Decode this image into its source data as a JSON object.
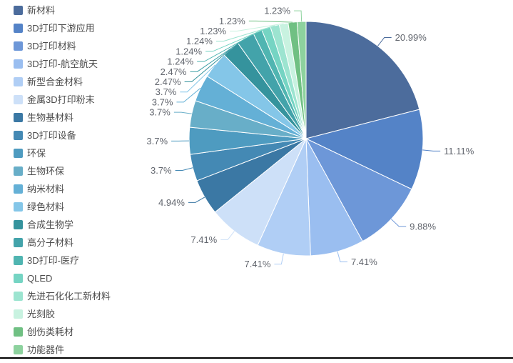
{
  "chart_data": {
    "type": "pie",
    "title": "",
    "legend_position": "left",
    "label_style": "percent-callout-with-leader-lines",
    "start_angle": "12-oclock",
    "direction": "clockwise",
    "items": [
      {
        "label": "新材料",
        "value": 20.99,
        "pct": "20.99%",
        "color": "#4C6C9C"
      },
      {
        "label": "3D打印下游应用",
        "value": 11.11,
        "pct": "11.11%",
        "color": "#5483C7"
      },
      {
        "label": "3D打印材料",
        "value": 9.88,
        "pct": "9.88%",
        "color": "#6D97D8"
      },
      {
        "label": "3D打印-航空航天",
        "value": 7.41,
        "pct": "7.41%",
        "color": "#9ABEF0"
      },
      {
        "label": "新型合金材料",
        "value": 7.41,
        "pct": "7.41%",
        "color": "#B0CEF5"
      },
      {
        "label": "金属3D打印粉末",
        "value": 7.41,
        "pct": "7.41%",
        "color": "#CDE0F8"
      },
      {
        "label": "生物基材料",
        "value": 4.94,
        "pct": "4.94%",
        "color": "#3B78A4"
      },
      {
        "label": "3D打印设备",
        "value": 3.7,
        "pct": "3.7%",
        "color": "#4489B4"
      },
      {
        "label": "环保",
        "value": 3.7,
        "pct": "3.7%",
        "color": "#4E9BC0"
      },
      {
        "label": "生物环保",
        "value": 3.7,
        "pct": "3.7%",
        "color": "#68AEC8"
      },
      {
        "label": "纳米材料",
        "value": 3.7,
        "pct": "3.7%",
        "color": "#64B0D6"
      },
      {
        "label": "绿色材料",
        "value": 3.7,
        "pct": "3.7%",
        "color": "#84C6E8"
      },
      {
        "label": "合成生物学",
        "value": 2.47,
        "pct": "2.47%",
        "color": "#35939D"
      },
      {
        "label": "高分子材料",
        "value": 2.47,
        "pct": "2.47%",
        "color": "#43A3AA"
      },
      {
        "label": "3D打印-医疗",
        "value": 1.24,
        "pct": "1.24%",
        "color": "#50B5B1"
      },
      {
        "label": "QLED",
        "value": 1.24,
        "pct": "1.24%",
        "color": "#75D4C3"
      },
      {
        "label": "先进石化化工新材料",
        "value": 1.24,
        "pct": "1.24%",
        "color": "#9CE4D0"
      },
      {
        "label": "光刻胶",
        "value": 1.23,
        "pct": "1.23%",
        "color": "#C8F2E0"
      },
      {
        "label": "创伤类耗材",
        "value": 1.23,
        "pct": "1.23%",
        "color": "#70C083"
      },
      {
        "label": "功能器件",
        "value": 1.23,
        "pct": "1.23%",
        "color": "#8DD29E"
      }
    ]
  }
}
